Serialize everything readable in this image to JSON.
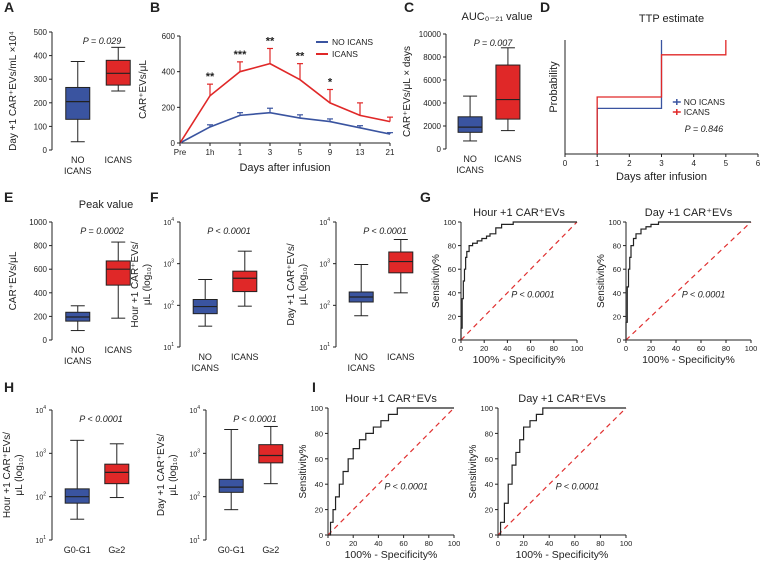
{
  "colors": {
    "no": "#3a54a0",
    "icans": "#e02828",
    "ref": "#e03030",
    "axis": "#222222"
  },
  "chart_data": [
    {
      "id": "A",
      "type": "boxplot",
      "panel_label": "A",
      "ylabel": "Day +1 CAR⁺EVs/mL ×10⁴",
      "ylim": [
        0,
        500
      ],
      "ticks": [
        0,
        100,
        200,
        300,
        400,
        500
      ],
      "categories": [
        "NO ICANS",
        "ICANS"
      ],
      "boxes": [
        {
          "min": 35,
          "q1": 130,
          "median": 205,
          "q3": 265,
          "max": 375
        },
        {
          "min": 250,
          "q1": 275,
          "median": 325,
          "q3": 380,
          "max": 435
        }
      ],
      "annotation": "P = 0.029"
    },
    {
      "id": "B",
      "type": "line",
      "panel_label": "B",
      "ylabel": "CAR⁺EVs/μL",
      "xlabel": "Days after infusion",
      "ylim": [
        0,
        600
      ],
      "ticks": [
        0,
        200,
        400,
        600
      ],
      "x": [
        "Pre",
        "1h",
        "1",
        "3",
        "5",
        "9",
        "13",
        "21"
      ],
      "series": [
        {
          "name": "NO ICANS",
          "values": [
            0,
            90,
            155,
            170,
            140,
            120,
            85,
            50
          ],
          "err": [
            0,
            12,
            15,
            25,
            18,
            15,
            12,
            8
          ]
        },
        {
          "name": "ICANS",
          "values": [
            0,
            265,
            400,
            445,
            355,
            225,
            155,
            120
          ],
          "err": [
            0,
            65,
            55,
            85,
            90,
            75,
            70,
            25
          ]
        }
      ],
      "significance": [
        "",
        "**",
        "***",
        "**",
        "**",
        "*",
        "",
        ""
      ]
    },
    {
      "id": "C",
      "type": "boxplot",
      "panel_label": "C",
      "title": "AUC₀₋₂₁ value",
      "ylabel": "CAR⁺EVs/μL × days",
      "ylim": [
        0,
        10000
      ],
      "ticks": [
        0,
        2000,
        4000,
        6000,
        8000,
        10000
      ],
      "categories": [
        "NO ICANS",
        "ICANS"
      ],
      "boxes": [
        {
          "min": 700,
          "q1": 1450,
          "median": 1900,
          "q3": 2800,
          "max": 4600
        },
        {
          "min": 1600,
          "q1": 2600,
          "median": 4300,
          "q3": 7300,
          "max": 8800
        }
      ],
      "annotation": "P = 0.007"
    },
    {
      "id": "D",
      "type": "step",
      "panel_label": "D",
      "title": "TTP estimate",
      "ylabel": "Probability",
      "xlabel": "Days after infusion",
      "xlim": [
        0,
        6
      ],
      "xticks": [
        0,
        1,
        2,
        3,
        4,
        5,
        6
      ],
      "series": [
        {
          "name": "NO ICANS",
          "points": [
            [
              1,
              0
            ],
            [
              1,
              0.4
            ],
            [
              3,
              0.4
            ],
            [
              3,
              1.0
            ]
          ]
        },
        {
          "name": "ICANS",
          "points": [
            [
              1,
              0
            ],
            [
              1,
              0.5
            ],
            [
              3,
              0.5
            ],
            [
              3,
              0.87
            ],
            [
              5,
              0.87
            ],
            [
              5,
              1.0
            ]
          ]
        }
      ],
      "annotation": "P = 0.846"
    },
    {
      "id": "E",
      "type": "boxplot",
      "panel_label": "E",
      "title": "Peak value",
      "ylabel": "CAR⁺EVs/μL",
      "ylim": [
        0,
        1000
      ],
      "ticks": [
        0,
        200,
        400,
        600,
        800,
        1000
      ],
      "categories": [
        "NO ICANS",
        "ICANS"
      ],
      "boxes": [
        {
          "min": 80,
          "q1": 160,
          "median": 195,
          "q3": 235,
          "max": 290
        },
        {
          "min": 185,
          "q1": 465,
          "median": 600,
          "q3": 670,
          "max": 830
        }
      ],
      "annotation": "P = 0.0002"
    },
    {
      "id": "F1",
      "type": "boxplot",
      "panel_label": "F",
      "scale": "log",
      "ylabel": "Hour +1 CAR⁺EVs/",
      "ylabel2": "μL (log₁₀)",
      "ylim_exp": [
        1,
        4
      ],
      "tick_exps": [
        1,
        2,
        3,
        4
      ],
      "categories": [
        "NO ICANS",
        "ICANS"
      ],
      "boxes": [
        {
          "min": 1.5,
          "q1": 1.8,
          "median": 1.97,
          "q3": 2.14,
          "max": 2.62
        },
        {
          "min": 1.98,
          "q1": 2.33,
          "median": 2.65,
          "q3": 2.82,
          "max": 3.3
        }
      ],
      "annotation": "P < 0.0001"
    },
    {
      "id": "F2",
      "type": "boxplot",
      "panel_label": "",
      "scale": "log",
      "ylabel": "Day +1 CAR⁺EVs/",
      "ylabel2": "μL (log₁₀)",
      "ylim_exp": [
        1,
        4
      ],
      "tick_exps": [
        1,
        2,
        3,
        4
      ],
      "categories": [
        "NO ICANS",
        "ICANS"
      ],
      "boxes": [
        {
          "min": 1.75,
          "q1": 2.08,
          "median": 2.2,
          "q3": 2.32,
          "max": 2.98
        },
        {
          "min": 2.3,
          "q1": 2.78,
          "median": 3.05,
          "q3": 3.28,
          "max": 3.58
        }
      ],
      "annotation": "P < 0.0001"
    },
    {
      "id": "G1",
      "type": "roc",
      "panel_label": "G",
      "title": "Hour +1 CAR⁺EVs",
      "xlabel": "100% - Specificity%",
      "ylabel": "Sensitivity%",
      "ticks": [
        0,
        20,
        40,
        60,
        80,
        100
      ],
      "points": [
        [
          0,
          0
        ],
        [
          0,
          10
        ],
        [
          1,
          20
        ],
        [
          1,
          35
        ],
        [
          2,
          50
        ],
        [
          3,
          60
        ],
        [
          4,
          70
        ],
        [
          5,
          75
        ],
        [
          7,
          80
        ],
        [
          10,
          82
        ],
        [
          14,
          84
        ],
        [
          18,
          86
        ],
        [
          22,
          88
        ],
        [
          25,
          90
        ],
        [
          30,
          95
        ],
        [
          35,
          98
        ],
        [
          45,
          100
        ],
        [
          100,
          100
        ]
      ],
      "annotation": "P < 0.0001"
    },
    {
      "id": "G2",
      "type": "roc",
      "panel_label": "",
      "title": "Day +1 CAR⁺EVs",
      "xlabel": "100% - Specificity%",
      "ylabel": "Sensitivity%",
      "ticks": [
        0,
        20,
        40,
        60,
        80,
        100
      ],
      "points": [
        [
          0,
          0
        ],
        [
          0,
          15
        ],
        [
          1,
          30
        ],
        [
          1,
          45
        ],
        [
          2,
          60
        ],
        [
          3,
          70
        ],
        [
          4,
          80
        ],
        [
          6,
          86
        ],
        [
          8,
          90
        ],
        [
          12,
          94
        ],
        [
          16,
          96
        ],
        [
          20,
          98
        ],
        [
          26,
          100
        ],
        [
          100,
          100
        ]
      ],
      "annotation": "P < 0.0001"
    },
    {
      "id": "H1",
      "type": "boxplot",
      "panel_label": "H",
      "scale": "log",
      "ylabel": "Hour +1 CAR⁺EVs/",
      "ylabel2": "μL (log₁₀)",
      "ylim_exp": [
        1,
        4
      ],
      "tick_exps": [
        1,
        2,
        3,
        4
      ],
      "categories": [
        "G0-G1",
        "G≥2"
      ],
      "boxes": [
        {
          "min": 1.48,
          "q1": 1.85,
          "median": 2.0,
          "q3": 2.18,
          "max": 3.3
        },
        {
          "min": 1.98,
          "q1": 2.3,
          "median": 2.56,
          "q3": 2.75,
          "max": 3.22
        }
      ],
      "annotation": "P < 0.0001"
    },
    {
      "id": "H2",
      "type": "boxplot",
      "panel_label": "",
      "scale": "log",
      "ylabel": "Day +1 CAR⁺EVs/",
      "ylabel2": "μL (log₁₀)",
      "ylim_exp": [
        1,
        4
      ],
      "tick_exps": [
        1,
        2,
        3,
        4
      ],
      "categories": [
        "G0-G1",
        "G≥2"
      ],
      "boxes": [
        {
          "min": 1.7,
          "q1": 2.1,
          "median": 2.22,
          "q3": 2.4,
          "max": 3.55
        },
        {
          "min": 2.3,
          "q1": 2.78,
          "median": 2.95,
          "q3": 3.2,
          "max": 3.62
        }
      ],
      "annotation": "P < 0.0001"
    },
    {
      "id": "I1",
      "type": "roc",
      "panel_label": "I",
      "title": "Hour +1 CAR⁺EVs",
      "xlabel": "100% - Specificity%",
      "ylabel": "Sensitivity%",
      "ticks": [
        0,
        20,
        40,
        60,
        80,
        100
      ],
      "points": [
        [
          0,
          0
        ],
        [
          2,
          10
        ],
        [
          4,
          20
        ],
        [
          6,
          30
        ],
        [
          9,
          40
        ],
        [
          12,
          50
        ],
        [
          16,
          60
        ],
        [
          20,
          68
        ],
        [
          25,
          75
        ],
        [
          30,
          80
        ],
        [
          36,
          85
        ],
        [
          42,
          90
        ],
        [
          48,
          95
        ],
        [
          55,
          100
        ],
        [
          100,
          100
        ]
      ],
      "annotation": "P < 0.0001"
    },
    {
      "id": "I2",
      "type": "roc",
      "panel_label": "",
      "title": "Day +1 CAR⁺EVs",
      "xlabel": "100% - Specificity%",
      "ylabel": "Sensitivity%",
      "ticks": [
        0,
        20,
        40,
        60,
        80,
        100
      ],
      "points": [
        [
          0,
          0
        ],
        [
          2,
          10
        ],
        [
          5,
          25
        ],
        [
          8,
          40
        ],
        [
          11,
          55
        ],
        [
          14,
          65
        ],
        [
          17,
          75
        ],
        [
          20,
          85
        ],
        [
          25,
          90
        ],
        [
          30,
          95
        ],
        [
          35,
          100
        ],
        [
          100,
          100
        ]
      ],
      "annotation": "P < 0.0001"
    }
  ]
}
